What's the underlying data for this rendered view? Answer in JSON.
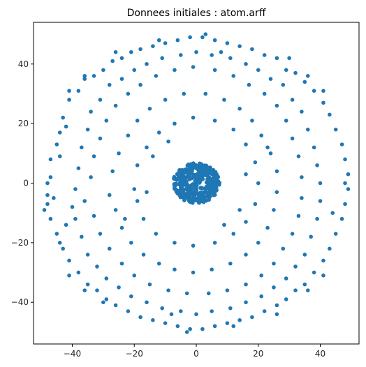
{
  "chart_data": {
    "type": "scatter",
    "title": "Donnees initiales : atom.arff",
    "xlabel": "",
    "ylabel": "",
    "xlim": [
      -52.5,
      52.5
    ],
    "ylim": [
      -54,
      54
    ],
    "xticks": [
      -40,
      -20,
      0,
      20,
      40
    ],
    "yticks": [
      -40,
      -20,
      0,
      20,
      40
    ],
    "xtick_labels": [
      "−40",
      "−20",
      "0",
      "20",
      "40"
    ],
    "ytick_labels": [
      "−40",
      "−20",
      "0",
      "20",
      "40"
    ],
    "grid": false,
    "legend": "none",
    "marker_color": "#1f77b4",
    "series": [
      {
        "outer_shell": [
          [
            -49,
            -9
          ],
          [
            -48,
            -4
          ],
          [
            -47,
            2
          ],
          [
            -47,
            8
          ],
          [
            -45,
            13
          ],
          [
            -44,
            17
          ],
          [
            -43,
            22
          ],
          [
            -41,
            28
          ],
          [
            -38,
            31
          ],
          [
            -36,
            35
          ],
          [
            -33,
            36
          ],
          [
            -30,
            38
          ],
          [
            -27,
            41
          ],
          [
            -24,
            42
          ],
          [
            -21,
            44
          ],
          [
            -18,
            45
          ],
          [
            -14,
            46
          ],
          [
            -10,
            47
          ],
          [
            -6,
            48
          ],
          [
            -2,
            49
          ],
          [
            2,
            49
          ],
          [
            6,
            48
          ],
          [
            10,
            47
          ],
          [
            14,
            46
          ],
          [
            18,
            45
          ],
          [
            22,
            43
          ],
          [
            26,
            42
          ],
          [
            29,
            38
          ],
          [
            32,
            37
          ],
          [
            35,
            34
          ],
          [
            38,
            31
          ],
          [
            41,
            27
          ],
          [
            43,
            23
          ],
          [
            45,
            18
          ],
          [
            47,
            13
          ],
          [
            48,
            8
          ],
          [
            49,
            3
          ],
          [
            49,
            -2
          ],
          [
            48,
            -7
          ],
          [
            47,
            -12
          ],
          [
            45,
            -17
          ],
          [
            43,
            -22
          ],
          [
            41,
            -26
          ],
          [
            38,
            -30
          ],
          [
            35,
            -34
          ],
          [
            32,
            -36
          ],
          [
            29,
            -39
          ],
          [
            26,
            -41
          ],
          [
            22,
            -43
          ],
          [
            18,
            -45
          ],
          [
            14,
            -46
          ],
          [
            10,
            -47
          ],
          [
            6,
            -48
          ],
          [
            2,
            -49
          ],
          [
            -2,
            -49
          ],
          [
            -6,
            -48
          ],
          [
            -10,
            -47
          ],
          [
            -14,
            -46
          ],
          [
            -18,
            -45
          ],
          [
            -22,
            -43
          ],
          [
            -26,
            -41
          ],
          [
            -29,
            -39
          ],
          [
            -32,
            -36
          ],
          [
            -35,
            -34
          ],
          [
            -38,
            -30
          ],
          [
            -41,
            -26
          ],
          [
            -43,
            -22
          ],
          [
            -45,
            -17
          ],
          [
            -47,
            -12
          ],
          [
            -48,
            -7
          ],
          [
            -44,
            -20
          ],
          [
            -42,
            -14
          ],
          [
            -40,
            -8
          ],
          [
            -39,
            -2
          ],
          [
            -38,
            5
          ],
          [
            -37,
            12
          ],
          [
            -35,
            18
          ],
          [
            -34,
            24
          ],
          [
            -31,
            28
          ],
          [
            -28,
            33
          ],
          [
            -24,
            35
          ],
          [
            -20,
            38
          ],
          [
            -16,
            40
          ],
          [
            -11,
            42
          ],
          [
            -5,
            43
          ],
          [
            0,
            44
          ],
          [
            5,
            43
          ],
          [
            11,
            42
          ],
          [
            16,
            40
          ],
          [
            20,
            38
          ],
          [
            24,
            35
          ],
          [
            28,
            33
          ],
          [
            31,
            28
          ],
          [
            34,
            24
          ],
          [
            36,
            18
          ],
          [
            38,
            12
          ],
          [
            39,
            6
          ],
          [
            40,
            0
          ],
          [
            40,
            -6
          ],
          [
            39,
            -12
          ],
          [
            37,
            -18
          ],
          [
            35,
            -24
          ],
          [
            32,
            -28
          ],
          [
            29,
            -32
          ],
          [
            25,
            -35
          ],
          [
            21,
            -38
          ],
          [
            16,
            -40
          ],
          [
            11,
            -42
          ],
          [
            5,
            -43
          ],
          [
            0,
            -44
          ],
          [
            -5,
            -43
          ],
          [
            -11,
            -42
          ],
          [
            -16,
            -40
          ],
          [
            -21,
            -38
          ],
          [
            -25,
            -35
          ],
          [
            -29,
            -32
          ],
          [
            -32,
            -28
          ],
          [
            -35,
            -24
          ],
          [
            -37,
            -18
          ],
          [
            -39,
            -12
          ],
          [
            -36,
            -6
          ],
          [
            -34,
            2
          ],
          [
            -33,
            9
          ],
          [
            -31,
            15
          ],
          [
            -29,
            21
          ],
          [
            -26,
            26
          ],
          [
            -22,
            30
          ],
          [
            -18,
            33
          ],
          [
            -13,
            36
          ],
          [
            -7,
            38
          ],
          [
            -1,
            39
          ],
          [
            6,
            38
          ],
          [
            12,
            36
          ],
          [
            17,
            33
          ],
          [
            22,
            30
          ],
          [
            26,
            26
          ],
          [
            29,
            21
          ],
          [
            31,
            15
          ],
          [
            33,
            9
          ],
          [
            34,
            2
          ],
          [
            34,
            -5
          ],
          [
            33,
            -11
          ],
          [
            31,
            -17
          ],
          [
            28,
            -22
          ],
          [
            25,
            -27
          ],
          [
            21,
            -31
          ],
          [
            16,
            -34
          ],
          [
            10,
            -36
          ],
          [
            4,
            -37
          ],
          [
            -3,
            -37
          ],
          [
            -9,
            -36
          ],
          [
            -15,
            -34
          ],
          [
            -20,
            -31
          ],
          [
            -24,
            -27
          ],
          [
            -28,
            -22
          ],
          [
            -31,
            -17
          ],
          [
            -33,
            -11
          ],
          [
            -28,
            -4
          ],
          [
            -27,
            4
          ],
          [
            -25,
            10
          ],
          [
            -22,
            16
          ],
          [
            -19,
            21
          ],
          [
            -15,
            25
          ],
          [
            -10,
            28
          ],
          [
            -4,
            30
          ],
          [
            3,
            30
          ],
          [
            9,
            28
          ],
          [
            14,
            25
          ],
          [
            18,
            21
          ],
          [
            21,
            16
          ],
          [
            24,
            10
          ],
          [
            26,
            4
          ],
          [
            26,
            -3
          ],
          [
            25,
            -9
          ],
          [
            23,
            -15
          ],
          [
            20,
            -20
          ],
          [
            16,
            -24
          ],
          [
            11,
            -27
          ],
          [
            5,
            -29
          ],
          [
            -1,
            -30
          ],
          [
            -7,
            -29
          ],
          [
            -12,
            -27
          ],
          [
            -17,
            -24
          ],
          [
            -21,
            -20
          ],
          [
            -24,
            -15
          ],
          [
            -26,
            -9
          ],
          [
            -20,
            -2
          ],
          [
            -19,
            6
          ],
          [
            -16,
            12
          ],
          [
            -12,
            17
          ],
          [
            -7,
            20
          ],
          [
            -1,
            22
          ],
          [
            6,
            21
          ],
          [
            12,
            18
          ],
          [
            16,
            13
          ],
          [
            19,
            7
          ],
          [
            20,
            0
          ],
          [
            19,
            -7
          ],
          [
            16,
            -13
          ],
          [
            12,
            -17
          ],
          [
            6,
            -20
          ],
          [
            -1,
            -21
          ],
          [
            -7,
            -20
          ],
          [
            -13,
            -17
          ],
          [
            -17,
            -12
          ],
          [
            -19,
            -6
          ],
          [
            -46,
            -5
          ],
          [
            -44,
            9
          ],
          [
            -42,
            19
          ],
          [
            -30,
            -40
          ],
          [
            30,
            42
          ],
          [
            44,
            -10
          ],
          [
            -12,
            48
          ],
          [
            12,
            -48
          ],
          [
            -48,
            0
          ],
          [
            48,
            0
          ],
          [
            -3,
            -50
          ],
          [
            3,
            50
          ],
          [
            -36,
            -36
          ],
          [
            36,
            36
          ],
          [
            -36,
            36
          ],
          [
            36,
            -36
          ],
          [
            -23,
            -12
          ],
          [
            23,
            12
          ],
          [
            -14,
            9
          ],
          [
            14,
            -9
          ],
          [
            -9,
            14
          ],
          [
            9,
            -14
          ],
          [
            -16,
            -3
          ],
          [
            16,
            3
          ],
          [
            -41,
            -31
          ],
          [
            41,
            31
          ],
          [
            -41,
            31
          ],
          [
            41,
            -31
          ],
          [
            -26,
            44
          ],
          [
            26,
            -44
          ],
          [
            -8,
            -44
          ],
          [
            8,
            44
          ]
        ]
      }
    ],
    "center_cluster_radius": 7.5,
    "center_cluster_count": 420
  }
}
